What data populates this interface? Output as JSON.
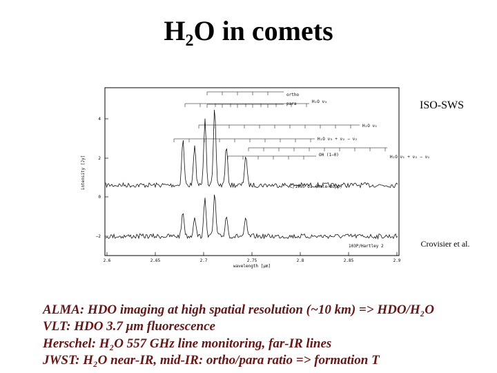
{
  "title": "H₂O in comets",
  "figure": {
    "source_label": "ISO-SWS",
    "credit": "Crovisier et al.",
    "y_axis_label": "intensity [Jy]",
    "x_axis_label": "wavelength [μm]",
    "y_ticks": [
      "4",
      "2",
      "0",
      "−2"
    ],
    "x_ticks": [
      "2.6",
      "2.65",
      "2.7",
      "2.75",
      "2.8",
      "2.85",
      "2.9"
    ],
    "annotations": [
      "ortho",
      "para",
      "H₂O ν₃",
      "H₂O ν₁",
      "H₂O ν₃ + ν₂ − ν₂",
      "OH (1−0)",
      "H₂O ν₁ + ν₂ − ν₂",
      "C/1995 O1 (Hale−Bopp)",
      "103P/Hartley 2"
    ]
  },
  "notes": [
    "ALMA: HDO imaging at high spatial resolution (~10 km) => HDO/H₂O",
    "VLT:    HDO 3.7 μm fluorescence",
    "Herschel: H₂O 557 GHz line monitoring, far-IR lines",
    "JWST: H₂O near-IR, mid-IR: ortho/para ratio => formation T"
  ]
}
